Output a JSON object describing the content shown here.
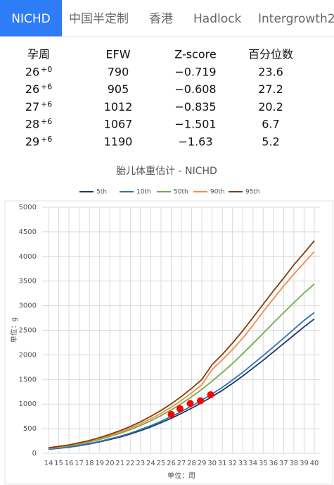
{
  "tabs": [
    "NICHD",
    "中国半定制",
    "香港",
    "Hadlock",
    "Intergrowth2"
  ],
  "table": {
    "header": [
      "孕周",
      "EFW",
      "Z-score",
      "百分位数"
    ],
    "rows": [
      {
        "week": "26",
        "days": "+0",
        "efw": "790",
        "z": "−0.719",
        "pct": "23.6"
      },
      {
        "week": "26",
        "days": "+6",
        "efw": "905",
        "z": "−0.608",
        "pct": "27.2"
      },
      {
        "week": "27",
        "days": "+6",
        "efw": "1012",
        "z": "−0.835",
        "pct": "20.2"
      },
      {
        "week": "28",
        "days": "+6",
        "efw": "1067",
        "z": "−1.501",
        "pct": "6.7"
      },
      {
        "week": "29",
        "days": "+6",
        "efw": "1190",
        "z": "−1.63",
        "pct": "5.2"
      }
    ]
  },
  "chart_data": {
    "type": "line",
    "title": "胎儿体重估计 - NICHD",
    "xlabel": "单位：周",
    "ylabel": "单位：g",
    "x": [
      14,
      15,
      16,
      17,
      18,
      19,
      20,
      21,
      22,
      23,
      24,
      25,
      26,
      27,
      28,
      29,
      30,
      31,
      32,
      33,
      34,
      35,
      36,
      37,
      38,
      39,
      40
    ],
    "xlim": [
      14,
      40
    ],
    "xticks": [
      14,
      15,
      16,
      17,
      18,
      19,
      20,
      21,
      22,
      23,
      24,
      25,
      26,
      27,
      28,
      29,
      30,
      31,
      32,
      33,
      34,
      35,
      36,
      37,
      38,
      39,
      40
    ],
    "ylim": [
      0,
      5000
    ],
    "yticks": [
      0,
      500,
      1000,
      1500,
      2000,
      2500,
      3000,
      3500,
      4000,
      4500,
      5000
    ],
    "grid": true,
    "series": [
      {
        "name": "5th",
        "color": "#1f3864",
        "values": [
          80,
          100,
          125,
          155,
          190,
          230,
          280,
          330,
          390,
          460,
          535,
          620,
          710,
          810,
          915,
          1030,
          1150,
          1280,
          1420,
          1570,
          1730,
          1890,
          2060,
          2230,
          2400,
          2570,
          2730
        ]
      },
      {
        "name": "10th",
        "color": "#2e75b6",
        "values": [
          84,
          105,
          131,
          162,
          199,
          241,
          293,
          345,
          408,
          481,
          560,
          650,
          745,
          850,
          960,
          1080,
          1205,
          1340,
          1490,
          1645,
          1815,
          1985,
          2160,
          2340,
          2520,
          2700,
          2860
        ]
      },
      {
        "name": "50th",
        "color": "#70ad47",
        "values": [
          95,
          120,
          150,
          185,
          230,
          280,
          340,
          405,
          480,
          565,
          660,
          765,
          880,
          1010,
          1150,
          1300,
          1465,
          1640,
          1825,
          2025,
          2230,
          2440,
          2650,
          2860,
          3060,
          3260,
          3440
        ]
      },
      {
        "name": "90th",
        "color": "#f08c4a",
        "values": [
          105,
          130,
          160,
          200,
          245,
          300,
          360,
          430,
          510,
          600,
          700,
          810,
          935,
          1075,
          1225,
          1395,
          1700,
          1900,
          2110,
          2340,
          2600,
          2880,
          3140,
          3400,
          3640,
          3870,
          4100
        ]
      },
      {
        "name": "95th",
        "color": "#843c0c",
        "values": [
          110,
          140,
          170,
          215,
          260,
          320,
          385,
          460,
          545,
          640,
          750,
          870,
          1005,
          1155,
          1320,
          1500,
          1800,
          2010,
          2240,
          2490,
          2760,
          3030,
          3300,
          3560,
          3830,
          4070,
          4320
        ]
      }
    ],
    "points": {
      "color": "#ff0000",
      "x": [
        26,
        26.86,
        27.86,
        28.86,
        29.86
      ],
      "values": [
        790,
        905,
        1012,
        1067,
        1190
      ]
    }
  }
}
